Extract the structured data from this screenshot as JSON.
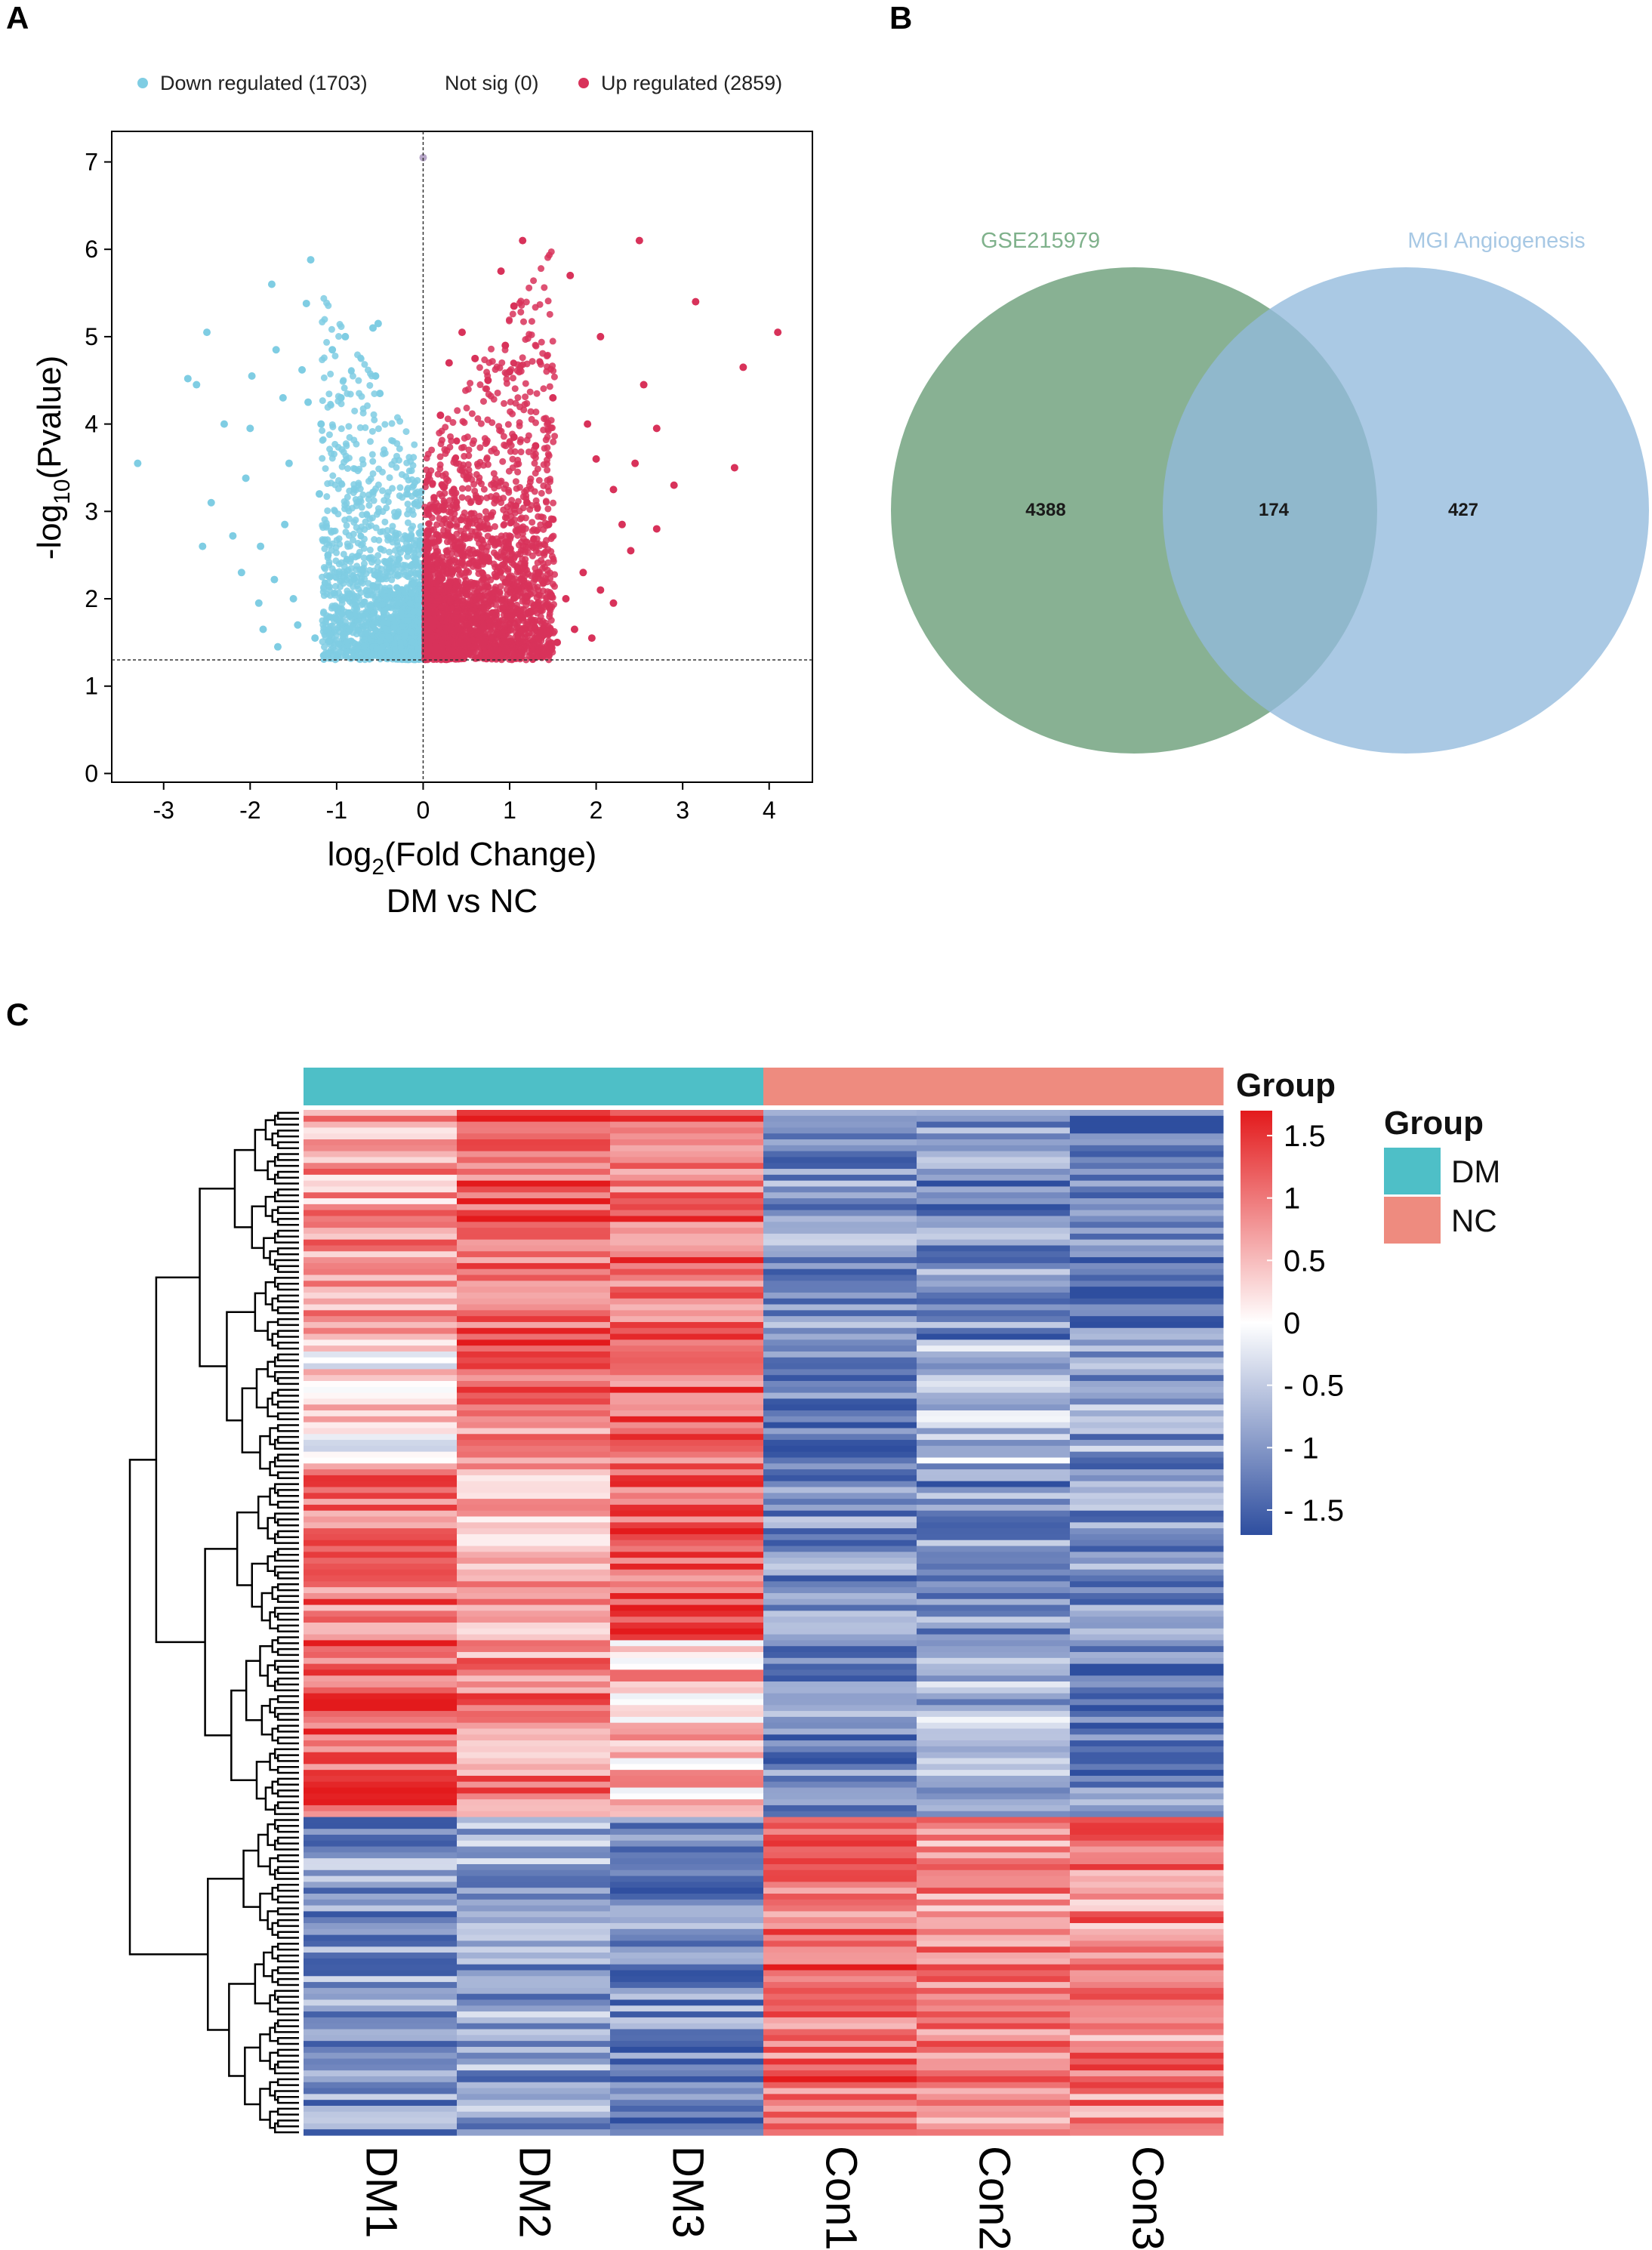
{
  "panels": {
    "a": "A",
    "b": "B",
    "c": "C"
  },
  "chart_data": [
    {
      "id": "volcano",
      "type": "scatter",
      "title": "",
      "xlabel_main": "log",
      "xlabel_sub": "2",
      "xlabel_rest": "(Fold Change)",
      "xlabel_line2": "DM vs NC",
      "ylabel_main": "-log",
      "ylabel_sub": "10",
      "ylabel_rest": "(Pvalue)",
      "xlim": [
        -3.6,
        4.5
      ],
      "ylim": [
        -0.1,
        7.35
      ],
      "xticks": [
        -3,
        -2,
        -1,
        0,
        1,
        2,
        3,
        4
      ],
      "yticks": [
        0,
        1,
        2,
        3,
        4,
        5,
        6,
        7
      ],
      "threshold_y": 1.3,
      "threshold_x": 0,
      "legend_position": "top",
      "legend": [
        {
          "label": "Down regulated (1703)",
          "color": "#7FCDE3"
        },
        {
          "label": "Not sig (0)",
          "color": "#9E9E9E"
        },
        {
          "label": "Up regulated (2859)",
          "color": "#D8325A"
        }
      ],
      "series": [
        {
          "name": "Down regulated",
          "count": 1703,
          "color": "#7FCDE3",
          "points": [
            [
              -3.3,
              3.55
            ],
            [
              -2.72,
              4.52
            ],
            [
              -2.62,
              4.45
            ],
            [
              -2.5,
              5.05
            ],
            [
              -2.55,
              2.6
            ],
            [
              -2.45,
              3.1
            ],
            [
              -2.2,
              2.72
            ],
            [
              -2.05,
              3.38
            ],
            [
              -2.0,
              3.95
            ],
            [
              -1.98,
              4.55
            ],
            [
              -1.75,
              5.6
            ],
            [
              -1.7,
              4.85
            ],
            [
              -1.62,
              4.3
            ],
            [
              -1.4,
              4.62
            ],
            [
              -1.35,
              5.38
            ],
            [
              -1.3,
              5.88
            ],
            [
              -1.33,
              4.25
            ],
            [
              -1.88,
              2.6
            ],
            [
              -1.9,
              1.95
            ],
            [
              -1.85,
              1.65
            ],
            [
              -1.72,
              2.22
            ],
            [
              -1.68,
              1.45
            ],
            [
              -1.55,
              3.55
            ],
            [
              -1.5,
              2.0
            ],
            [
              -1.2,
              3.2
            ],
            [
              -1.18,
              4.0
            ],
            [
              -1.05,
              4.85
            ],
            [
              -0.95,
              4.3
            ],
            [
              -0.9,
              5.0
            ],
            [
              -0.58,
              5.1
            ],
            [
              -0.52,
              5.15
            ],
            [
              -0.55,
              4.55
            ],
            [
              -0.5,
              4.35
            ],
            [
              -1.25,
              1.55
            ],
            [
              -1.1,
              2.5
            ],
            [
              -2.3,
              4.0
            ],
            [
              -1.15,
              1.35
            ],
            [
              -1.45,
              1.7
            ],
            [
              -2.1,
              2.3
            ],
            [
              -1.6,
              2.85
            ]
          ]
        },
        {
          "name": "Up regulated",
          "count": 2859,
          "color": "#D8325A",
          "points": [
            [
              1.15,
              6.1
            ],
            [
              2.5,
              6.1
            ],
            [
              3.15,
              5.4
            ],
            [
              4.1,
              5.05
            ],
            [
              3.7,
              4.65
            ],
            [
              0.9,
              5.75
            ],
            [
              1.05,
              5.35
            ],
            [
              1.7,
              5.7
            ],
            [
              2.05,
              5.0
            ],
            [
              2.55,
              4.45
            ],
            [
              3.6,
              3.5
            ],
            [
              2.45,
              3.55
            ],
            [
              2.9,
              3.3
            ],
            [
              0.45,
              5.05
            ],
            [
              0.95,
              4.9
            ],
            [
              0.75,
              4.5
            ],
            [
              1.0,
              4.6
            ],
            [
              1.5,
              4.3
            ],
            [
              1.9,
              4.0
            ],
            [
              2.0,
              3.6
            ],
            [
              2.7,
              3.95
            ],
            [
              2.2,
              3.25
            ],
            [
              2.3,
              2.85
            ],
            [
              2.4,
              2.55
            ],
            [
              1.85,
              2.3
            ],
            [
              1.65,
              2.0
            ],
            [
              2.2,
              1.95
            ],
            [
              1.45,
              2.85
            ],
            [
              1.3,
              3.75
            ],
            [
              1.05,
              3.85
            ],
            [
              1.2,
              3.1
            ],
            [
              0.6,
              4.75
            ],
            [
              0.3,
              4.7
            ],
            [
              0.2,
              4.1
            ],
            [
              1.75,
              1.65
            ],
            [
              1.95,
              1.55
            ],
            [
              2.7,
              2.8
            ],
            [
              2.05,
              2.1
            ],
            [
              1.55,
              1.5
            ],
            [
              1.35,
              1.6
            ]
          ]
        }
      ]
    },
    {
      "id": "venn",
      "type": "venn",
      "sets": [
        {
          "name": "GSE215979",
          "color": "#6A9E78",
          "label_color": "#7FB18B"
        },
        {
          "name": "MGI Angiogenesis",
          "color": "#92BADD",
          "label_color": "#A7C8E4"
        }
      ],
      "regions": {
        "only_first": "4388",
        "intersection": "174",
        "only_second": "427"
      }
    },
    {
      "id": "heatmap",
      "type": "heatmap",
      "columns": [
        "DM1",
        "DM2",
        "DM3",
        "Con1",
        "Con2",
        "Con3"
      ],
      "column_groups": [
        "DM",
        "DM",
        "DM",
        "NC",
        "NC",
        "NC"
      ],
      "group_colors": {
        "DM": "#4EBFC7",
        "NC": "#EE8B7F"
      },
      "group_bar_title": "Group",
      "legend_title": "Group",
      "legend_items": [
        {
          "label": "DM",
          "color": "#4EBFC7"
        },
        {
          "label": "NC",
          "color": "#EE8B7F"
        }
      ],
      "colorbar_ticks": [
        1.5,
        1,
        0.5,
        0,
        -0.5,
        -1,
        -1.5
      ],
      "colorbar_tick_labels": [
        "1.5",
        "1",
        "0.5",
        "0",
        "- 0.5",
        "- 1",
        "- 1.5"
      ],
      "value_range": [
        -1.7,
        1.7
      ],
      "colormap": [
        "#2E4E9F",
        "#FFFFFF",
        "#E31A1C"
      ],
      "row_count": 174,
      "row_blocks": [
        {
          "rows": 40,
          "means": [
            0.7,
            1.2,
            1.1,
            -1.0,
            -1.1,
            -1.3
          ]
        },
        {
          "rows": 20,
          "means": [
            0.2,
            1.0,
            1.2,
            -1.2,
            -0.6,
            -0.9
          ]
        },
        {
          "rows": 30,
          "means": [
            1.0,
            0.6,
            1.3,
            -1.0,
            -1.1,
            -1.0
          ]
        },
        {
          "rows": 30,
          "means": [
            1.3,
            0.9,
            0.5,
            -1.1,
            -0.7,
            -1.2
          ]
        },
        {
          "rows": 54,
          "means": [
            -1.0,
            -0.9,
            -1.1,
            1.1,
            0.9,
            0.9
          ]
        }
      ]
    }
  ]
}
